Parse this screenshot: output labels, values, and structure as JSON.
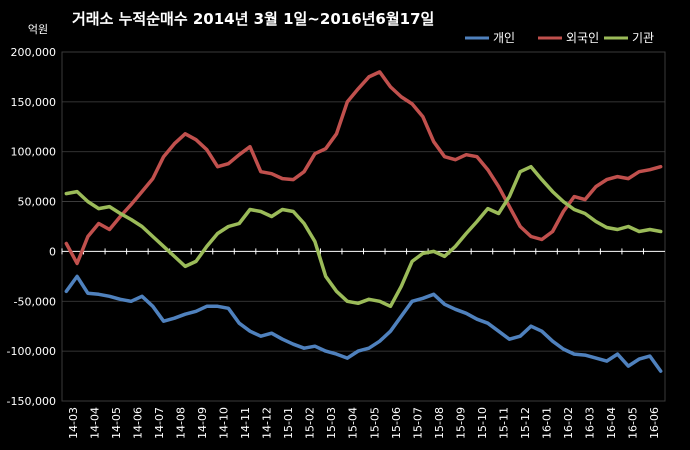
{
  "chart_data": {
    "type": "line",
    "title": "거래소  누적순매수 2014년 3월 1일~2016년6월17일",
    "ylabel": "억원",
    "ylim": [
      -150000,
      200000
    ],
    "yticks": [
      200000,
      150000,
      100000,
      50000,
      0,
      -50000,
      -100000,
      -150000
    ],
    "ytick_labels": [
      "200,000",
      "150,000",
      "100,000",
      "50,000",
      "0",
      "-50,000",
      "-100,000",
      "-150,000"
    ],
    "categories": [
      "14-03",
      "14-04",
      "14-05",
      "14-06",
      "14-07",
      "14-08",
      "14-09",
      "14-10",
      "14-11",
      "14-12",
      "15-01",
      "15-02",
      "15-03",
      "15-04",
      "15-05",
      "15-06",
      "15-07",
      "15-08",
      "15-09",
      "15-10",
      "15-11",
      "15-12",
      "16-01",
      "16-02",
      "16-03",
      "16-04",
      "16-05",
      "16-06"
    ],
    "x": [
      0,
      0.5,
      1,
      1.5,
      2,
      2.5,
      3,
      3.5,
      4,
      4.5,
      5,
      5.5,
      6,
      6.5,
      7,
      7.5,
      8,
      8.5,
      9,
      9.5,
      10,
      10.5,
      11,
      11.5,
      12,
      12.5,
      13,
      13.5,
      14,
      14.5,
      15,
      15.5,
      16,
      16.5,
      17,
      17.5,
      18,
      18.5,
      19,
      19.5,
      20,
      20.5,
      21,
      21.5,
      22,
      22.5,
      23,
      23.5,
      24,
      24.5,
      25,
      25.5,
      26,
      26.5,
      27,
      27.5
    ],
    "series": [
      {
        "name": "개인",
        "color": "#4f81bd",
        "values": [
          -40000,
          -25000,
          -42000,
          -43000,
          -45000,
          -48000,
          -50000,
          -45000,
          -55000,
          -70000,
          -67000,
          -63000,
          -60000,
          -55000,
          -55000,
          -57000,
          -72000,
          -80000,
          -85000,
          -82000,
          -88000,
          -93000,
          -97000,
          -95000,
          -100000,
          -103000,
          -107000,
          -100000,
          -97000,
          -90000,
          -80000,
          -65000,
          -50000,
          -47000,
          -43000,
          -53000,
          -58000,
          -62000,
          -68000,
          -72000,
          -80000,
          -88000,
          -85000,
          -75000,
          -80000,
          -90000,
          -98000,
          -103000,
          -104000,
          -107000,
          -110000,
          -103000,
          -115000,
          -108000,
          -105000,
          -120000
        ]
      },
      {
        "name": "외국인",
        "color": "#c0504d",
        "values": [
          8000,
          -12000,
          15000,
          28000,
          22000,
          35000,
          47000,
          60000,
          73000,
          95000,
          108000,
          118000,
          112000,
          102000,
          85000,
          88000,
          97000,
          105000,
          80000,
          78000,
          73000,
          72000,
          80000,
          98000,
          103000,
          118000,
          150000,
          163000,
          175000,
          180000,
          165000,
          155000,
          148000,
          135000,
          110000,
          95000,
          92000,
          97000,
          95000,
          82000,
          65000,
          45000,
          25000,
          15000,
          12000,
          20000,
          40000,
          55000,
          52000,
          65000,
          72000,
          75000,
          73000,
          80000,
          82000,
          85000
        ]
      },
      {
        "name": "기관",
        "color": "#9bbb59",
        "values": [
          58000,
          60000,
          50000,
          43000,
          45000,
          38000,
          32000,
          25000,
          15000,
          5000,
          -5000,
          -15000,
          -10000,
          5000,
          18000,
          25000,
          28000,
          42000,
          40000,
          35000,
          42000,
          40000,
          28000,
          10000,
          -25000,
          -40000,
          -50000,
          -52000,
          -48000,
          -50000,
          -55000,
          -35000,
          -10000,
          -2000,
          0,
          -5000,
          5000,
          18000,
          30000,
          43000,
          38000,
          55000,
          80000,
          85000,
          72000,
          60000,
          50000,
          42000,
          38000,
          30000,
          24000,
          22000,
          25000,
          20000,
          22000,
          20000
        ]
      }
    ],
    "legend": "top-right",
    "grid": true
  }
}
